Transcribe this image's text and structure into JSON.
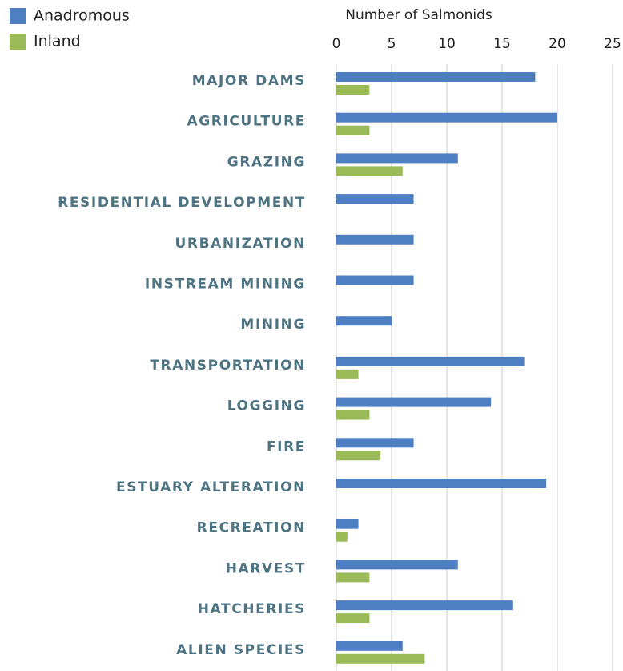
{
  "chart_data": {
    "type": "bar",
    "orientation": "horizontal",
    "x_label": "Number of Salmonids",
    "categories": [
      "MAJOR DAMS",
      "AGRICULTURE",
      "GRAZING",
      "RESIDENTIAL DEVELOPMENT",
      "URBANIZATION",
      "INSTREAM MINING",
      "MINING",
      "TRANSPORTATION",
      "LOGGING",
      "FIRE",
      "ESTUARY ALTERATION",
      "RECREATION",
      "HARVEST",
      "HATCHERIES",
      "ALIEN SPECIES"
    ],
    "series": [
      {
        "name": "Anadromous",
        "color": "#4f7fc3",
        "values": [
          18,
          20,
          11,
          7,
          7,
          7,
          5,
          17,
          14,
          7,
          19,
          2,
          11,
          16,
          6
        ]
      },
      {
        "name": "Inland",
        "color": "#9bbb59",
        "values": [
          3,
          3,
          6,
          0,
          0,
          0,
          0,
          2,
          3,
          4,
          0,
          1,
          3,
          3,
          8
        ]
      }
    ],
    "xlim": [
      0,
      25
    ],
    "xticks": [
      0,
      5,
      10,
      15,
      20,
      25
    ],
    "grid": true,
    "legend": "top-left"
  }
}
